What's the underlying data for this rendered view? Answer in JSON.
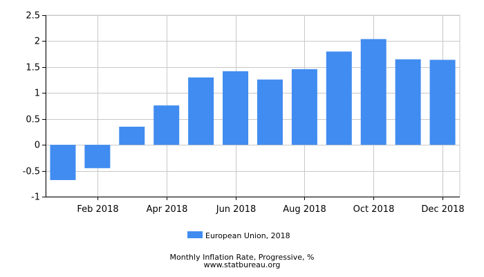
{
  "chart_data": {
    "type": "bar",
    "categories": [
      "Jan 2018",
      "Feb 2018",
      "Mar 2018",
      "Apr 2018",
      "May 2018",
      "Jun 2018",
      "Jul 2018",
      "Aug 2018",
      "Sep 2018",
      "Oct 2018",
      "Nov 2018",
      "Dec 2018"
    ],
    "x_tick_labels": [
      "Feb 2018",
      "Apr 2018",
      "Jun 2018",
      "Aug 2018",
      "Oct 2018",
      "Dec 2018"
    ],
    "series": [
      {
        "name": "European Union, 2018",
        "color": "#418cf0",
        "values": [
          -0.68,
          -0.45,
          0.35,
          0.76,
          1.3,
          1.42,
          1.26,
          1.46,
          1.8,
          2.04,
          1.65,
          1.64
        ]
      }
    ],
    "ylim": [
      -1,
      2.5
    ],
    "y_ticks": [
      -1,
      -0.5,
      0,
      0.5,
      1,
      1.5,
      2,
      2.5
    ],
    "y_tick_labels": [
      "-1",
      "-0.5",
      "0",
      "0.5",
      "1",
      "1.5",
      "2",
      "2.5"
    ],
    "grid": true,
    "legend_position": "bottom-center",
    "title": "Monthly Inflation Rate, Progressive, %",
    "source": "www.statbureau.org"
  }
}
